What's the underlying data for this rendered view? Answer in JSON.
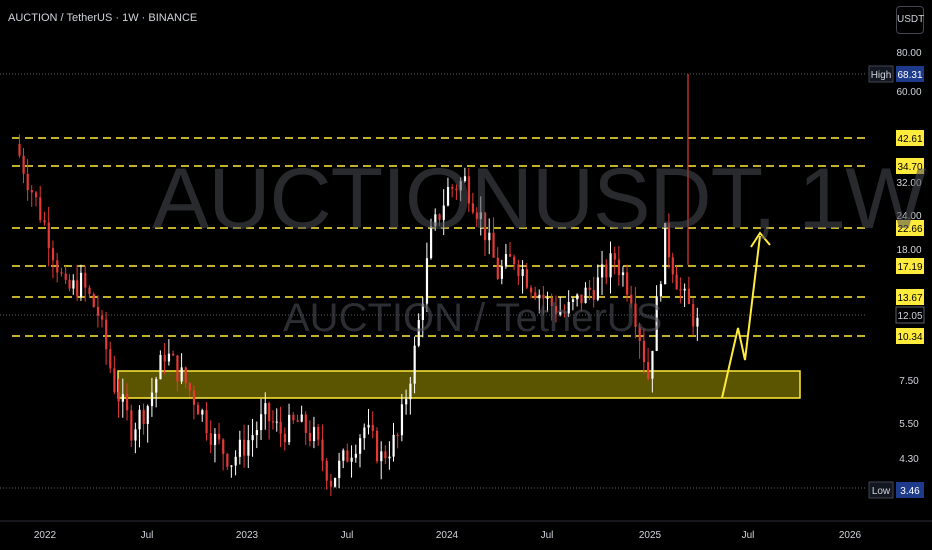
{
  "header": {
    "symbol_line": "AUCTION / TetherUS · 1W · BINANCE",
    "currency_button": "USDT"
  },
  "watermark": {
    "ticker": "AUCTIONUSDT, 1W",
    "description": "AUCTION / TetherUS"
  },
  "colors": {
    "up": "#ffffff",
    "down": "#e53935",
    "level": "#ffeb3b",
    "zone_fill": "#6b6300",
    "zone_stroke": "#ffeb3b",
    "arrow": "#ffeb3b",
    "background": "#000000",
    "axis_text": "#d1d4dc"
  },
  "chart_data": {
    "type": "candlestick",
    "scale": "log",
    "ylim": [
      3.2,
      95
    ],
    "x_ticks": [
      "2022",
      "Jul",
      "2023",
      "Jul",
      "2024",
      "Jul",
      "2025",
      "Jul",
      "2026"
    ],
    "y_ticks": [
      "80.00",
      "60.00",
      "32.00",
      "24.00",
      "18.00",
      "7.50",
      "5.50",
      "4.30"
    ],
    "high": {
      "label": "High",
      "value": "68.31"
    },
    "low": {
      "label": "Low",
      "value": "3.46"
    },
    "last_price": "12.05",
    "levels": [
      "42.61",
      "34.70",
      "22.66",
      "17.19",
      "13.67",
      "10.34"
    ],
    "demand_zone": {
      "low": 6.7,
      "high": 8.2,
      "start": "2022-05",
      "end": "2025-11"
    },
    "projection": [
      {
        "date": "2025-05",
        "price": 6.7
      },
      {
        "date": "2025-06",
        "price": 12.2
      },
      {
        "date": "2025-06-15",
        "price": 10.0
      },
      {
        "date": "2025-07",
        "price": 21.5
      }
    ],
    "closes": [
      {
        "date": "2021-11",
        "close": 41
      },
      {
        "date": "2021-12",
        "close": 30
      },
      {
        "date": "2022-01",
        "close": 22
      },
      {
        "date": "2022-02",
        "close": 15
      },
      {
        "date": "2022-03",
        "close": 16
      },
      {
        "date": "2022-04",
        "close": 13
      },
      {
        "date": "2022-05",
        "close": 8
      },
      {
        "date": "2022-06",
        "close": 6
      },
      {
        "date": "2022-07",
        "close": 7
      },
      {
        "date": "2022-08",
        "close": 10
      },
      {
        "date": "2022-09",
        "close": 8.5
      },
      {
        "date": "2022-10",
        "close": 7
      },
      {
        "date": "2022-11",
        "close": 5.5
      },
      {
        "date": "2022-12",
        "close": 4.8
      },
      {
        "date": "2023-01",
        "close": 5.5
      },
      {
        "date": "2023-02",
        "close": 6.5
      },
      {
        "date": "2023-03",
        "close": 5.8
      },
      {
        "date": "2023-04",
        "close": 6.2
      },
      {
        "date": "2023-05",
        "close": 5.6
      },
      {
        "date": "2023-06",
        "close": 4.2
      },
      {
        "date": "2023-07",
        "close": 5
      },
      {
        "date": "2023-08",
        "close": 6
      },
      {
        "date": "2023-09",
        "close": 4.9
      },
      {
        "date": "2023-10",
        "close": 5.6
      },
      {
        "date": "2023-11",
        "close": 10
      },
      {
        "date": "2023-12",
        "close": 22
      },
      {
        "date": "2024-01",
        "close": 30
      },
      {
        "date": "2024-02",
        "close": 32
      },
      {
        "date": "2024-03",
        "close": 25
      },
      {
        "date": "2024-04",
        "close": 17
      },
      {
        "date": "2024-05",
        "close": 19
      },
      {
        "date": "2024-06",
        "close": 16
      },
      {
        "date": "2024-07",
        "close": 14
      },
      {
        "date": "2024-08",
        "close": 13
      },
      {
        "date": "2024-09",
        "close": 14.5
      },
      {
        "date": "2024-10",
        "close": 16
      },
      {
        "date": "2024-11",
        "close": 19
      },
      {
        "date": "2024-12",
        "close": 15
      },
      {
        "date": "2025-01",
        "close": 8.5
      },
      {
        "date": "2025-02",
        "close": 22
      },
      {
        "date": "2025-03",
        "close": 15
      },
      {
        "date": "2025-04",
        "close": 12.05
      }
    ]
  }
}
